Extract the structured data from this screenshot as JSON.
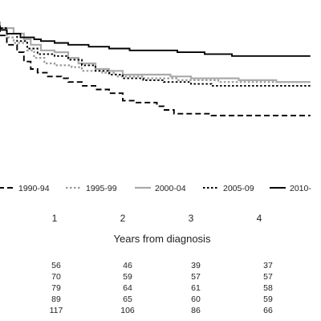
{
  "chart_data": {
    "type": "line",
    "subtype": "kaplan-meier step",
    "xlabel": "Years from diagnosis",
    "x_ticks": [
      "1",
      "2",
      "3",
      "4"
    ],
    "xlim": [
      0,
      4.75
    ],
    "ylim": [
      0.0,
      1.0
    ],
    "grid": false,
    "legend_position": "bottom",
    "series": [
      {
        "name": "1990-94",
        "color": "#000000",
        "dash": "dashed",
        "points": [
          [
            0,
            1.0
          ],
          [
            0.1,
            0.96
          ],
          [
            0.2,
            0.93
          ],
          [
            0.3,
            0.88
          ],
          [
            0.45,
            0.84
          ],
          [
            0.55,
            0.79
          ],
          [
            0.65,
            0.75
          ],
          [
            0.75,
            0.73
          ],
          [
            0.9,
            0.71
          ],
          [
            1.1,
            0.7
          ],
          [
            1.2,
            0.68
          ],
          [
            1.4,
            0.66
          ],
          [
            1.6,
            0.64
          ],
          [
            1.8,
            0.62
          ],
          [
            2.0,
            0.58
          ],
          [
            2.2,
            0.57
          ],
          [
            2.5,
            0.55
          ],
          [
            2.6,
            0.53
          ],
          [
            2.75,
            0.51
          ],
          [
            3.3,
            0.5
          ],
          [
            3.8,
            0.5
          ],
          [
            4.75,
            0.5
          ]
        ],
        "at_risk": [
          56,
          46,
          39,
          37
        ]
      },
      {
        "name": "1995-99",
        "color": "#999999",
        "dash": "dotted",
        "points": [
          [
            0,
            1.0
          ],
          [
            0.15,
            0.96
          ],
          [
            0.3,
            0.92
          ],
          [
            0.4,
            0.89
          ],
          [
            0.6,
            0.85
          ],
          [
            0.7,
            0.81
          ],
          [
            0.85,
            0.78
          ],
          [
            1.0,
            0.77
          ],
          [
            1.25,
            0.76
          ],
          [
            1.4,
            0.74
          ],
          [
            1.7,
            0.73
          ],
          [
            1.9,
            0.71
          ],
          [
            2.3,
            0.7
          ],
          [
            2.8,
            0.69
          ],
          [
            3.4,
            0.68
          ],
          [
            4.75,
            0.68
          ]
        ],
        "at_risk": [
          70,
          59,
          57,
          57
        ]
      },
      {
        "name": "2000-04",
        "color": "#aaaaaa",
        "dash": "solid",
        "points": [
          [
            0,
            1.0
          ],
          [
            0.2,
            0.97
          ],
          [
            0.4,
            0.94
          ],
          [
            0.55,
            0.91
          ],
          [
            0.65,
            0.88
          ],
          [
            0.8,
            0.85
          ],
          [
            1.0,
            0.84
          ],
          [
            1.2,
            0.81
          ],
          [
            1.35,
            0.78
          ],
          [
            1.6,
            0.75
          ],
          [
            1.8,
            0.74
          ],
          [
            2.0,
            0.72
          ],
          [
            2.4,
            0.72
          ],
          [
            2.7,
            0.71
          ],
          [
            3.0,
            0.7
          ],
          [
            3.5,
            0.7
          ],
          [
            3.7,
            0.69
          ],
          [
            4.1,
            0.69
          ],
          [
            4.25,
            0.68
          ],
          [
            4.75,
            0.68
          ]
        ],
        "at_risk": [
          79,
          64,
          61,
          58
        ]
      },
      {
        "name": "2005-09",
        "color": "#000000",
        "dash": "dotted",
        "points": [
          [
            0,
            1.0
          ],
          [
            0.1,
            0.97
          ],
          [
            0.3,
            0.94
          ],
          [
            0.45,
            0.9
          ],
          [
            0.6,
            0.86
          ],
          [
            0.75,
            0.83
          ],
          [
            1.0,
            0.82
          ],
          [
            1.2,
            0.8
          ],
          [
            1.4,
            0.77
          ],
          [
            1.6,
            0.74
          ],
          [
            1.8,
            0.72
          ],
          [
            2.0,
            0.7
          ],
          [
            2.3,
            0.69
          ],
          [
            2.6,
            0.68
          ],
          [
            3.0,
            0.67
          ],
          [
            3.3,
            0.66
          ],
          [
            4.0,
            0.66
          ],
          [
            4.3,
            0.66
          ],
          [
            4.75,
            0.65
          ]
        ],
        "at_risk": [
          89,
          65,
          60,
          59
        ]
      },
      {
        "name": "2010-",
        "color": "#000000",
        "dash": "solid",
        "points": [
          [
            0,
            1.0
          ],
          [
            0.1,
            0.98
          ],
          [
            0.2,
            0.96
          ],
          [
            0.3,
            0.94
          ],
          [
            0.5,
            0.92
          ],
          [
            0.7,
            0.91
          ],
          [
            0.8,
            0.9
          ],
          [
            1.0,
            0.89
          ],
          [
            1.2,
            0.88
          ],
          [
            1.5,
            0.87
          ],
          [
            1.8,
            0.86
          ],
          [
            2.1,
            0.85
          ],
          [
            2.5,
            0.85
          ],
          [
            2.8,
            0.84
          ],
          [
            3.2,
            0.83
          ],
          [
            3.6,
            0.82
          ],
          [
            4.75,
            0.82
          ]
        ],
        "at_risk": [
          117,
          106,
          86,
          66
        ]
      }
    ]
  }
}
